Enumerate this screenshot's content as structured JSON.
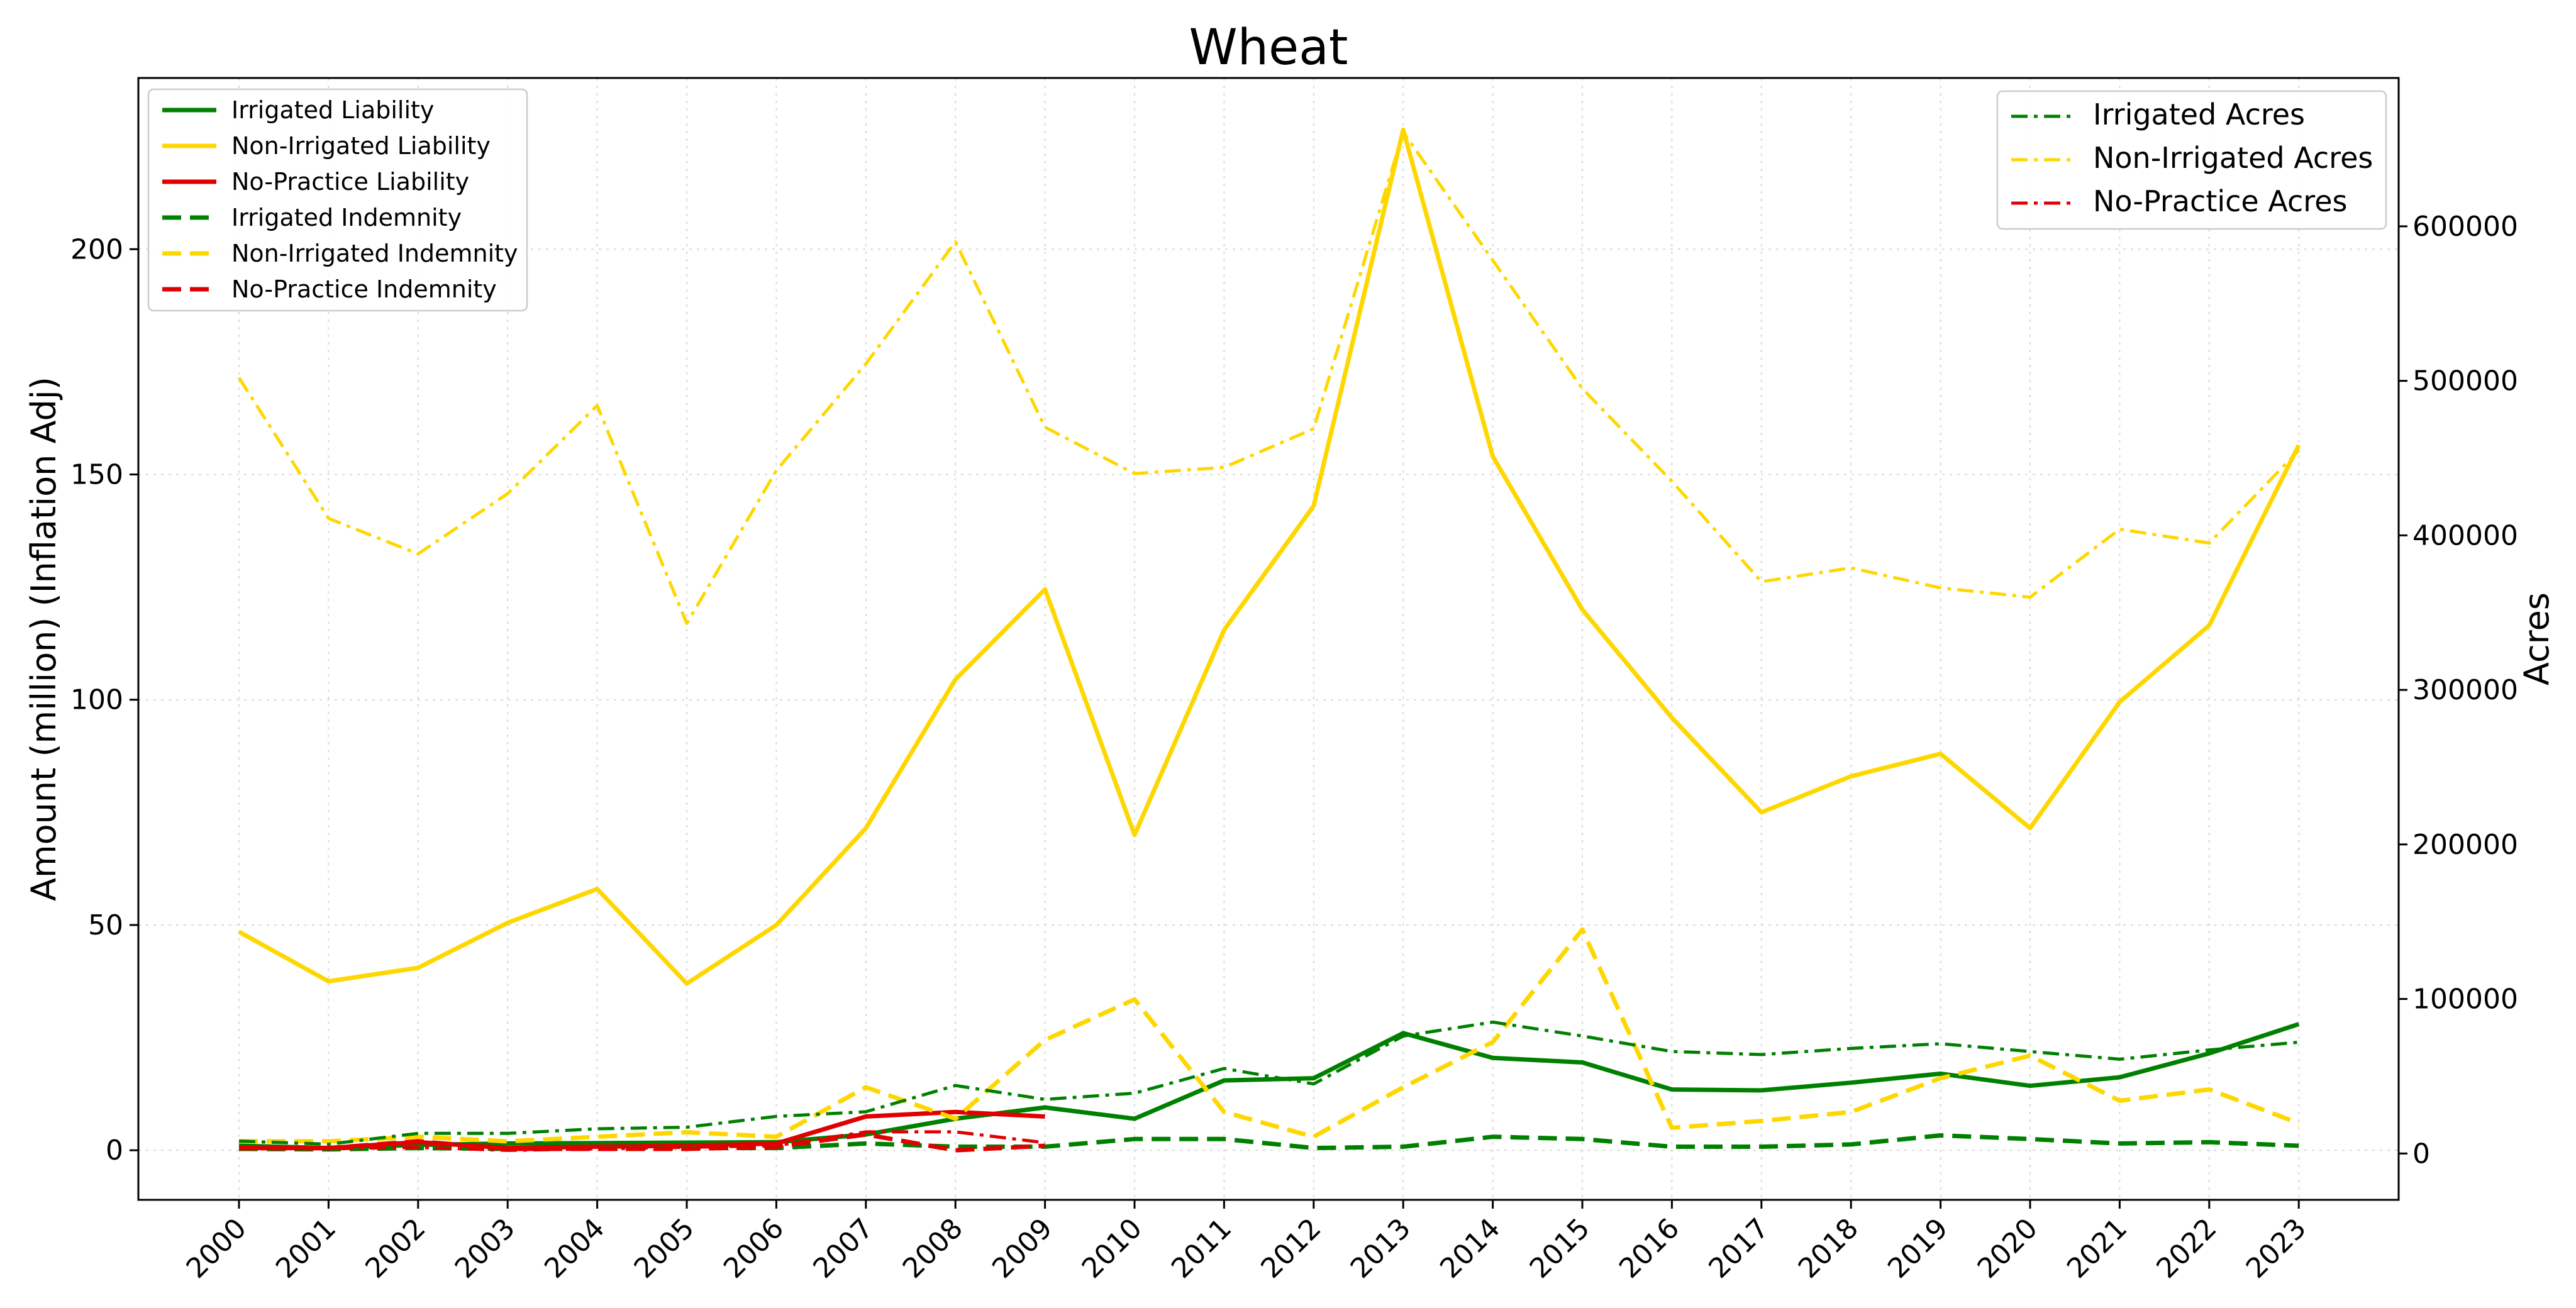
{
  "chart_data": {
    "type": "line",
    "title": "Wheat",
    "ylabel": "Amount (million) (Inflation Adj)",
    "y2label": "Acres",
    "xlabel": "",
    "x": [
      2000,
      2001,
      2002,
      2003,
      2004,
      2005,
      2006,
      2007,
      2008,
      2009,
      2010,
      2011,
      2012,
      2013,
      2014,
      2015,
      2016,
      2017,
      2018,
      2019,
      2020,
      2021,
      2022,
      2023
    ],
    "ylim": [
      -11,
      238
    ],
    "y2lim": [
      -30000,
      696000
    ],
    "yticks": [
      0,
      50,
      100,
      150,
      200
    ],
    "y2ticks": [
      0,
      100000,
      200000,
      300000,
      400000,
      500000,
      600000
    ],
    "grid": true,
    "series": [
      {
        "name": "Irrigated Liability",
        "axis": "left",
        "style": "solid",
        "color": "#008000",
        "values": [
          1.0,
          0.5,
          1.2,
          1.5,
          1.6,
          1.7,
          1.8,
          3.5,
          7.0,
          9.5,
          7.0,
          15.5,
          16.0,
          26.0,
          20.5,
          19.5,
          13.5,
          13.3,
          15.0,
          17.0,
          14.3,
          16.2,
          21.5,
          28.0
        ]
      },
      {
        "name": "Non-Irrigated Liability",
        "axis": "left",
        "style": "solid",
        "color": "#FFD700",
        "values": [
          48.5,
          37.5,
          40.5,
          50.5,
          58.0,
          37.0,
          50.0,
          71.5,
          104.5,
          124.5,
          70.0,
          115.5,
          143.0,
          226.5,
          154.0,
          120.0,
          96.0,
          75.0,
          83.0,
          88.0,
          71.5,
          99.5,
          116.5,
          156.5
        ]
      },
      {
        "name": "No-Practice Liability",
        "axis": "left",
        "style": "solid",
        "color": "#e00000",
        "values": [
          0.5,
          0.5,
          1.8,
          0.5,
          0.8,
          1.0,
          1.5,
          7.5,
          8.5,
          7.5,
          null,
          null,
          null,
          null,
          null,
          null,
          null,
          null,
          null,
          null,
          null,
          null,
          null,
          null
        ]
      },
      {
        "name": "Irrigated Indemnity",
        "axis": "left",
        "style": "dashed",
        "color": "#008000",
        "values": [
          0.3,
          0.2,
          0.5,
          0.3,
          0.3,
          0.5,
          0.5,
          1.5,
          0.8,
          0.8,
          2.5,
          2.5,
          0.5,
          0.8,
          3.0,
          2.5,
          0.8,
          0.8,
          1.3,
          3.3,
          2.5,
          1.5,
          1.8,
          1.0
        ]
      },
      {
        "name": "Non-Irrigated Indemnity",
        "axis": "left",
        "style": "dashed",
        "color": "#FFD700",
        "values": [
          2.0,
          2.0,
          3.0,
          2.0,
          3.0,
          4.0,
          3.0,
          14.0,
          7.0,
          24.5,
          33.5,
          8.5,
          3.0,
          14.0,
          24.0,
          49.0,
          5.0,
          6.5,
          8.5,
          16.0,
          21.0,
          11.0,
          13.5,
          6.0
        ]
      },
      {
        "name": "No-Practice Indemnity",
        "axis": "left",
        "style": "dashed",
        "color": "#e00000",
        "values": [
          0.5,
          0.5,
          2.0,
          0.3,
          0.3,
          0.3,
          0.8,
          3.5,
          0.0,
          1.0,
          null,
          null,
          null,
          null,
          null,
          null,
          null,
          null,
          null,
          null,
          null,
          null,
          null,
          null
        ]
      },
      {
        "name": "Irrigated Acres",
        "axis": "right",
        "style": "dashdot",
        "color": "#008000",
        "values": [
          8000,
          6000,
          13000,
          13000,
          16000,
          17000,
          24000,
          27000,
          44000,
          35000,
          39000,
          55000,
          45000,
          76000,
          85000,
          76000,
          66000,
          64000,
          68000,
          71000,
          66000,
          61000,
          67000,
          72000
        ]
      },
      {
        "name": "Non-Irrigated Acres",
        "axis": "right",
        "style": "dashdot",
        "color": "#FFD700",
        "values": [
          502000,
          411000,
          388000,
          427000,
          484000,
          343000,
          442000,
          511000,
          590000,
          470000,
          440000,
          444000,
          469000,
          661000,
          578000,
          495000,
          435000,
          370000,
          379000,
          366000,
          360000,
          404000,
          395000,
          455000
        ]
      },
      {
        "name": "No-Practice Acres",
        "axis": "right",
        "style": "dashdot",
        "color": "#e00000",
        "values": [
          3000,
          3000,
          4000,
          2000,
          3000,
          4000,
          5000,
          14000,
          14000,
          7000,
          null,
          null,
          null,
          null,
          null,
          null,
          null,
          null,
          null,
          null,
          null,
          null,
          null,
          null
        ]
      }
    ],
    "legends": [
      {
        "placement": "upper-left",
        "items": [
          "Irrigated Liability",
          "Non-Irrigated Liability",
          "No-Practice Liability",
          "Irrigated Indemnity",
          "Non-Irrigated Indemnity",
          "No-Practice Indemnity"
        ]
      },
      {
        "placement": "upper-right",
        "items": [
          "Irrigated Acres",
          "Non-Irrigated Acres",
          "No-Practice Acres"
        ]
      }
    ]
  }
}
